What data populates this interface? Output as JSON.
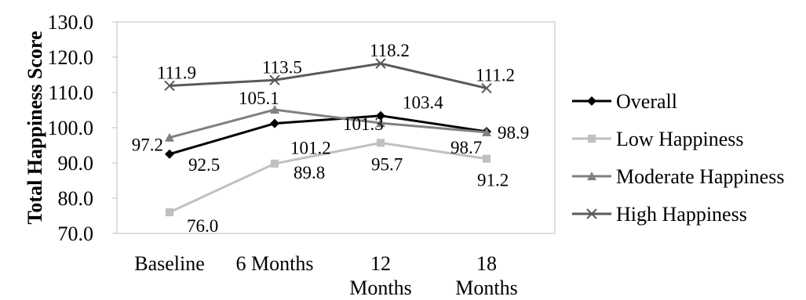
{
  "chart_data": {
    "type": "line",
    "title": "",
    "xlabel": "",
    "ylabel": "Total Happiness Score",
    "ylim": [
      70.0,
      130.0
    ],
    "ytick_step": 10,
    "grid": "none",
    "legend_position": "right",
    "categories": [
      [
        "Baseline"
      ],
      [
        "6 Months"
      ],
      [
        "12",
        "Months"
      ],
      [
        "18",
        "Months"
      ]
    ],
    "series": [
      {
        "name": "Overall",
        "values": [
          92.5,
          101.2,
          103.4,
          98.9
        ],
        "color": "#000000",
        "marker": "diamond",
        "labels": [
          "92.5",
          "101.2",
          "103.4",
          "98.9"
        ]
      },
      {
        "name": "Low Happiness",
        "values": [
          76.0,
          89.8,
          95.7,
          91.2
        ],
        "color": "#c0c0c0",
        "marker": "square",
        "labels": [
          "76.0",
          "89.8",
          "95.7",
          "91.2"
        ]
      },
      {
        "name": "Moderate Happiness",
        "values": [
          97.2,
          105.1,
          101.3,
          98.7
        ],
        "color": "#808080",
        "marker": "triangle",
        "labels": [
          "97.2",
          "105.1",
          "101.3",
          "98.7"
        ]
      },
      {
        "name": "High Happiness",
        "values": [
          111.9,
          113.5,
          118.2,
          111.2
        ],
        "color": "#595959",
        "marker": "x",
        "labels": [
          "111.9",
          "113.5",
          "118.2",
          "111.2"
        ]
      }
    ]
  }
}
